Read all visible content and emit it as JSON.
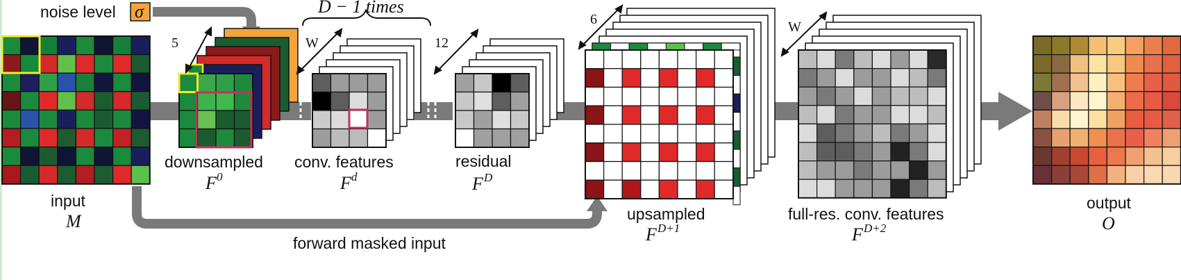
{
  "labels": {
    "noise_level": "noise level",
    "sigma": "σ",
    "repeat_top": "D − 1 times",
    "w_left": "W",
    "w_right": "W",
    "dim_5": "5",
    "dim_12": "12",
    "dim_6": "6",
    "input_label": "input",
    "input_sym": "M",
    "down_label": "downsampled",
    "down_sym": "F",
    "down_sup": "0",
    "conv_label": "conv. features",
    "conv_sym": "F",
    "conv_sup": "d",
    "res_label": "residual",
    "res_sym": "F",
    "res_sup": "D",
    "up_label": "upsampled",
    "up_sym": "F",
    "up_sup": "D+1",
    "full_label": "full-res. conv. features",
    "full_sym": "F",
    "full_sup": "D+2",
    "output_label": "output",
    "output_sym": "O",
    "forward_label": "forward masked input"
  },
  "grids": {
    "input": [
      [
        "#1a8a3c",
        "#101533",
        "#15803a",
        "#1a1f5c",
        "#1d8a3c",
        "#101533",
        "#15803a",
        "#1a1f5c"
      ],
      [
        "#8b1a1a",
        "#158a3c",
        "#d42a2a",
        "#61c04c",
        "#e02a2a",
        "#1c8a3c",
        "#de2a2a",
        "#1a5c32"
      ],
      [
        "#1a8a3c",
        "#1e1f5c",
        "#2fa048",
        "#2a52a8",
        "#18803a",
        "#121540",
        "#1a8a3c",
        "#121540"
      ],
      [
        "#6a1418",
        "#1c8a3c",
        "#e02a2a",
        "#61c04c",
        "#d42a2a",
        "#1c5c30",
        "#d42a2a",
        "#1a5c32"
      ],
      [
        "#1a8a3c",
        "#2a52a8",
        "#1c8a3c",
        "#1a1f5c",
        "#1a8a3c",
        "#1a5c32",
        "#1c8a3c",
        "#121540"
      ],
      [
        "#b21e22",
        "#1c8a3c",
        "#de2a2a",
        "#1c5c30",
        "#d42a2a",
        "#1c8a3c",
        "#c02226",
        "#1c5c30"
      ],
      [
        "#1a8a3c",
        "#101533",
        "#1a5c32",
        "#101533",
        "#1c8a3c",
        "#101533",
        "#1a8a3c",
        "#1a1f5c"
      ],
      [
        "#a8181c",
        "#1a5c32",
        "#d42a2a",
        "#1c5c30",
        "#b21e22",
        "#1c5c30",
        "#de2a2a",
        "#5cc04c"
      ]
    ],
    "down": [
      [
        "#1a8a3c",
        "#3aa84a",
        "#2fa048",
        "#1e8a3c"
      ],
      [
        "#1a8a3c",
        "#3cb44c",
        "#41b84e",
        "#1e8a3c"
      ],
      [
        "#1a8a3c",
        "#6ac050",
        "#1a5c30",
        "#1a5c30"
      ],
      [
        "#1a8a3c",
        "#1a5c30",
        "#1e8a3c",
        "#1a5c30"
      ]
    ],
    "conv": [
      [
        "#5e5e5e",
        "#9c9c9c",
        "#9c9c9c",
        "#9c9c9c"
      ],
      [
        "#000000",
        "#5e5e5e",
        "#dcdcdc",
        "#9c9c9c"
      ],
      [
        "#cccccc",
        "#dcdcdc",
        "#ffffff",
        "#9c9c9c"
      ],
      [
        "#9c9c9c",
        "#bcbcbc",
        "#bcbcbc",
        "#ffffff"
      ]
    ],
    "residual": [
      [
        "#a0a0a0",
        "#c8c8c8",
        "#000000",
        "#5e5e5e"
      ],
      [
        "#c8c8c8",
        "#e0e0e0",
        "#5e5e5e",
        "#a0a0a0"
      ],
      [
        "#c8c8c8",
        "#a0a0a0",
        "#e0e0e0",
        "#c8c8c8"
      ],
      [
        "#ffffff",
        "#a0a0a0",
        "#a0a0a0",
        "#a0a0a0"
      ]
    ],
    "full": [
      [
        "#bdbdbd",
        "#dcdcdc",
        "#7a7a7a",
        "#bdbdbd",
        "#dcdcdc",
        "#9c9c9c",
        "#dcdcdc",
        "#2a2a2a"
      ],
      [
        "#7a7a7a",
        "#9c9c9c",
        "#dcdcdc",
        "#9c9c9c",
        "#9c9c9c",
        "#dcdcdc",
        "#bdbdbd",
        "#7a7a7a"
      ],
      [
        "#9c9c9c",
        "#7a7a7a",
        "#9c9c9c",
        "#dcdcdc",
        "#9c9c9c",
        "#bdbdbd",
        "#bdbdbd",
        "#dcdcdc"
      ],
      [
        "#bdbdbd",
        "#dcdcdc",
        "#7a7a7a",
        "#9c9c9c",
        "#9c9c9c",
        "#dcdcdc",
        "#dcdcdc",
        "#bdbdbd"
      ],
      [
        "#dcdcdc",
        "#5e5e5e",
        "#7a7a7a",
        "#9c9c9c",
        "#bdbdbd",
        "#7a7a7a",
        "#9c9c9c",
        "#dcdcdc"
      ],
      [
        "#bdbdbd",
        "#5e5e5e",
        "#5e5e5e",
        "#7a7a7a",
        "#9c9c9c",
        "#222222",
        "#7a7a7a",
        "#dcdcdc"
      ],
      [
        "#bdbdbd",
        "#9c9c9c",
        "#9c9c9c",
        "#7a7a7a",
        "#9c9c9c",
        "#9c9c9c",
        "#222222",
        "#9c9c9c"
      ],
      [
        "#dcdcdc",
        "#dcdcdc",
        "#9c9c9c",
        "#9c9c9c",
        "#9c9c9c",
        "#222222",
        "#7a7a7a",
        "#bdbdbd"
      ]
    ],
    "output": [
      [
        "#7a6a28",
        "#8a7a2a",
        "#b08a30",
        "#f2c070",
        "#f8cc80",
        "#f3a060",
        "#e8804c",
        "#e06a3c"
      ],
      [
        "#7a6a28",
        "#8a6a40",
        "#f0c080",
        "#fbe4a0",
        "#f8c880",
        "#ee8c50",
        "#e8704a",
        "#e06040"
      ],
      [
        "#7a7a38",
        "#a07050",
        "#f4c090",
        "#fdf0c0",
        "#f8c080",
        "#ee7c4c",
        "#e8604a",
        "#e05a40"
      ],
      [
        "#6a5048",
        "#d8a080",
        "#fbe8c0",
        "#fef4d0",
        "#f4b070",
        "#ec6c48",
        "#e85a44",
        "#d84a3c"
      ],
      [
        "#c08060",
        "#f8dca8",
        "#fef6d0",
        "#fbe0a0",
        "#f0a060",
        "#e85c40",
        "#e85a44",
        "#e06048"
      ],
      [
        "#8a5040",
        "#e8a070",
        "#f0b070",
        "#f09050",
        "#ec7048",
        "#e86048",
        "#f08060",
        "#f0a070"
      ],
      [
        "#6a3830",
        "#a04030",
        "#c84830",
        "#e86040",
        "#ec7850",
        "#f0a070",
        "#f4c090",
        "#f8d0a0"
      ],
      [
        "#6a3038",
        "#8a4038",
        "#a84838",
        "#e07048",
        "#f4b080",
        "#f8d0a8",
        "#fad8b0",
        "#f8d8b0"
      ]
    ],
    "up_red": [
      "#8a1418",
      "#e02a2a",
      "#b0161c",
      "#d42a2a",
      "#8a1418"
    ]
  },
  "colors": {
    "arrow": "#7a7a7a",
    "sigma_box": "#f3a53b",
    "highlight_yellow": "#f2ec2a",
    "highlight_pink": "#c33060",
    "background": "#ffffff"
  }
}
